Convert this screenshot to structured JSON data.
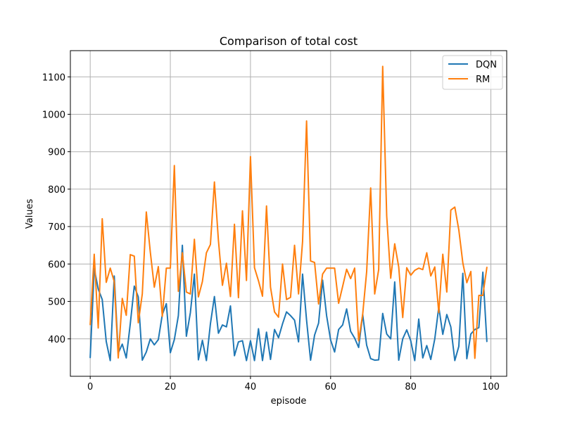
{
  "chart_data": {
    "type": "line",
    "title": "Comparison of total cost",
    "xlabel": "episode",
    "ylabel": "Values",
    "xlim": [
      -4.95,
      103.95
    ],
    "ylim": [
      300,
      1170
    ],
    "xticks": [
      0,
      20,
      40,
      60,
      80,
      100
    ],
    "yticks": [
      400,
      500,
      600,
      700,
      800,
      900,
      1000,
      1100
    ],
    "grid": true,
    "legend_position": "top-right",
    "x": [
      0,
      1,
      2,
      3,
      4,
      5,
      6,
      7,
      8,
      9,
      10,
      11,
      12,
      13,
      14,
      15,
      16,
      17,
      18,
      19,
      20,
      21,
      22,
      23,
      24,
      25,
      26,
      27,
      28,
      29,
      30,
      31,
      32,
      33,
      34,
      35,
      36,
      37,
      38,
      39,
      40,
      41,
      42,
      43,
      44,
      45,
      46,
      47,
      48,
      49,
      50,
      51,
      52,
      53,
      54,
      55,
      56,
      57,
      58,
      59,
      60,
      61,
      62,
      63,
      64,
      65,
      66,
      67,
      68,
      69,
      70,
      71,
      72,
      73,
      74,
      75,
      76,
      77,
      78,
      79,
      80,
      81,
      82,
      83,
      84,
      85,
      86,
      87,
      88,
      89,
      90,
      91,
      92,
      93,
      94,
      95,
      96,
      97,
      98,
      99
    ],
    "series": [
      {
        "name": "DQN",
        "color": "#1f77b4",
        "values": [
          350,
          588,
          533,
          505,
          393,
          342,
          568,
          362,
          386,
          349,
          440,
          541,
          512,
          343,
          365,
          400,
          384,
          398,
          465,
          494,
          363,
          398,
          462,
          650,
          407,
          470,
          573,
          344,
          396,
          342,
          440,
          513,
          415,
          437,
          432,
          488,
          355,
          392,
          395,
          342,
          395,
          342,
          427,
          342,
          418,
          345,
          425,
          403,
          440,
          472,
          462,
          450,
          392,
          573,
          450,
          343,
          410,
          442,
          557,
          462,
          397,
          365,
          425,
          437,
          480,
          420,
          402,
          377,
          465,
          383,
          347,
          343,
          344,
          468,
          413,
          400,
          552,
          343,
          400,
          424,
          395,
          342,
          453,
          349,
          382,
          345,
          400,
          485,
          412,
          465,
          432,
          342,
          380,
          575,
          347,
          413,
          425,
          430,
          578,
          393
        ]
      },
      {
        "name": "RM",
        "color": "#ff7f0e",
        "values": [
          438,
          626,
          429,
          721,
          551,
          589,
          553,
          349,
          508,
          463,
          625,
          621,
          443,
          520,
          739,
          632,
          538,
          593,
          460,
          589,
          589,
          863,
          527,
          630,
          525,
          520,
          666,
          512,
          553,
          630,
          652,
          819,
          663,
          543,
          602,
          513,
          706,
          510,
          742,
          556,
          887,
          590,
          555,
          514,
          755,
          538,
          472,
          458,
          600,
          505,
          511,
          650,
          520,
          660,
          982,
          608,
          604,
          493,
          573,
          589,
          589,
          589,
          495,
          540,
          586,
          561,
          589,
          395,
          465,
          580,
          803,
          520,
          585,
          1128,
          728,
          562,
          654,
          592,
          457,
          590,
          570,
          583,
          589,
          585,
          630,
          568,
          592,
          470,
          626,
          525,
          744,
          752,
          691,
          603,
          550,
          580,
          348,
          516,
          516,
          591
        ]
      }
    ]
  }
}
